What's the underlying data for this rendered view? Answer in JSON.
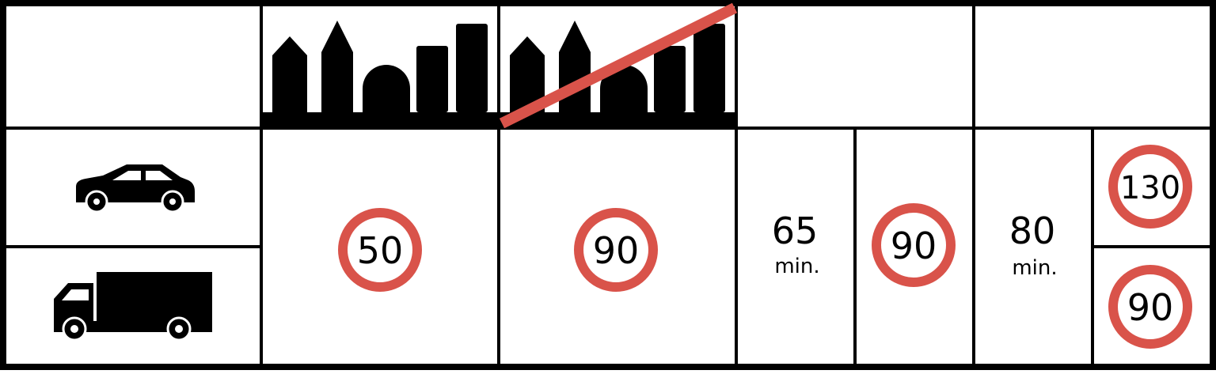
{
  "colors": {
    "border": "#000000",
    "sign_ring": "#d9534a",
    "sign_fill": "#ffffff",
    "icon": "#000000",
    "strike": "#d9534a"
  },
  "header": {
    "icons": [
      {
        "name": "town-entrance-icon"
      },
      {
        "name": "town-exit-icon"
      }
    ]
  },
  "vehicles": [
    {
      "icon": "car-icon"
    },
    {
      "icon": "truck-icon"
    }
  ],
  "columns": {
    "town": {
      "sign": "50"
    },
    "outside_town": {
      "sign": "90"
    },
    "expressway": {
      "min_value": "65",
      "min_label": "min.",
      "sign": "90"
    },
    "motorway": {
      "min_value": "80",
      "min_label": "min.",
      "sign_car": "130",
      "sign_truck": "90"
    }
  }
}
